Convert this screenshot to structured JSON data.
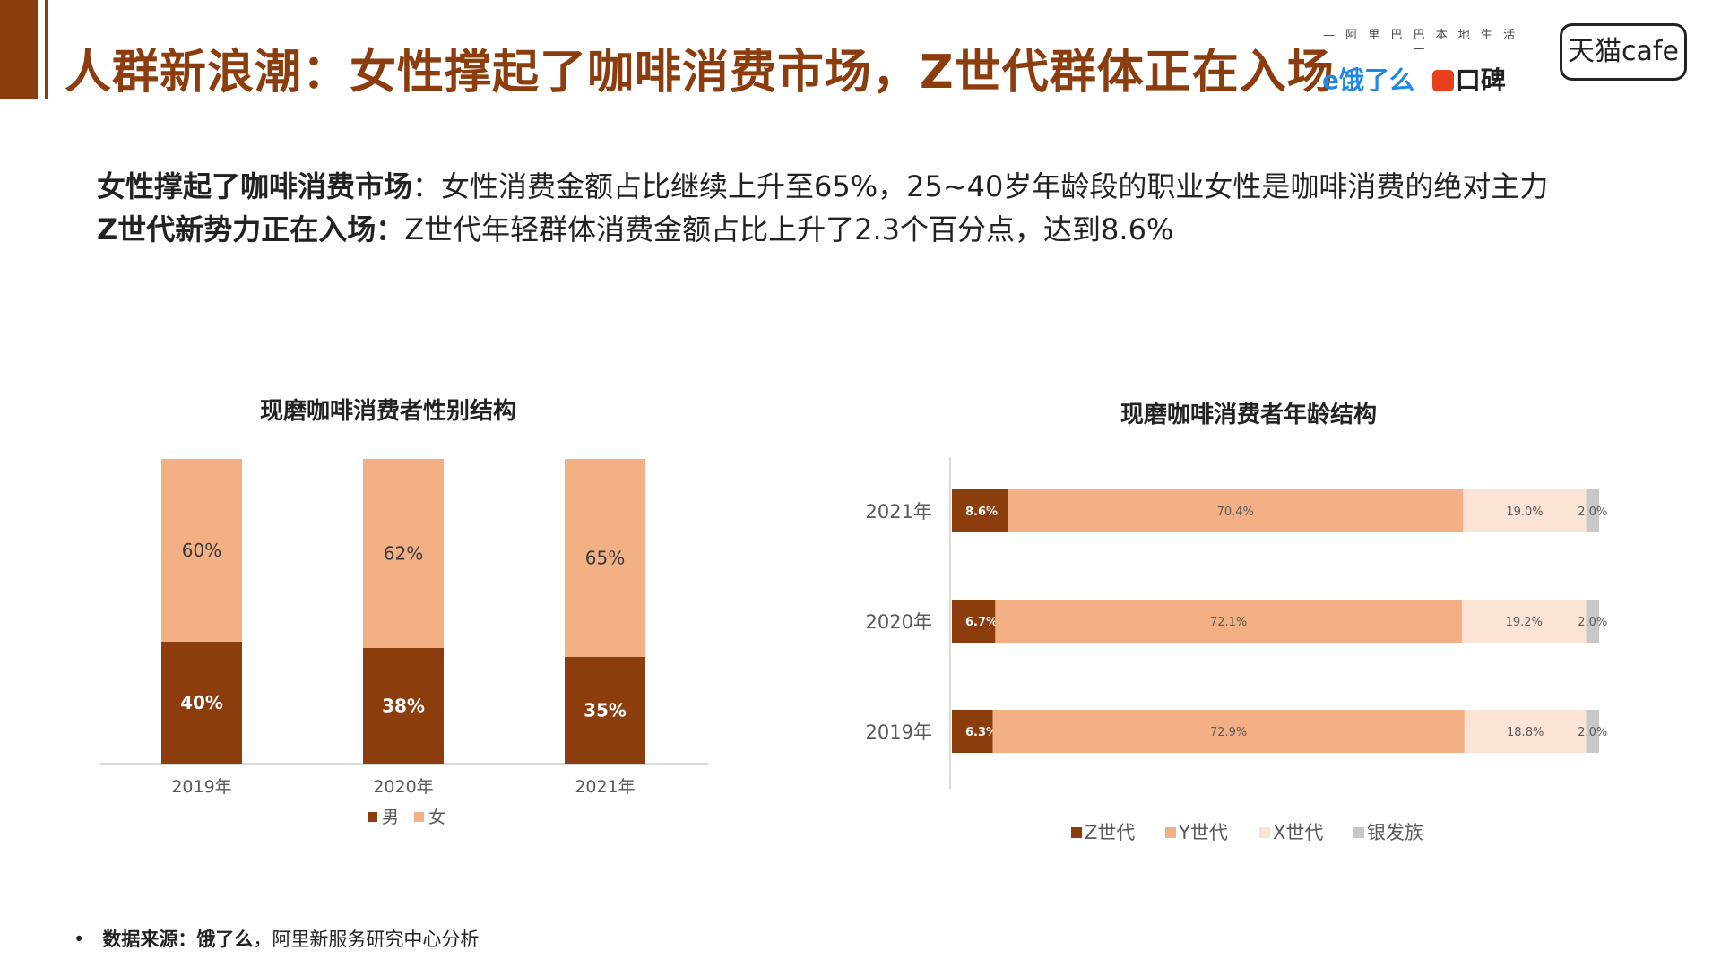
{
  "header": {
    "title": "人群新浪潮：女性撑起了咖啡消费市场，Z世代群体正在入场",
    "logo_tagline": "— 阿 里 巴 巴 本 地 生 活 —",
    "logo_eleme": "e饿了么",
    "logo_koubei": "口碑",
    "logo_tmall": "天猫cafe",
    "accent_color": "#8B3D0E"
  },
  "summary": {
    "line1_lead": "女性撑起了咖啡消费市场",
    "line1_text": "：女性消费金额占比继续上升至65%，25~40岁年龄段的职业女性是咖啡消费的绝对主力",
    "line2_lead": "Z世代新势力正在入场：",
    "line2_text": "Z世代年轻群体消费金额占比上升了2.3个百分点，达到8.6%"
  },
  "chart_data": [
    {
      "type": "bar",
      "stacked": true,
      "orientation": "vertical",
      "title": "现磨咖啡消费者性别结构",
      "categories": [
        "2019年",
        "2020年",
        "2021年"
      ],
      "series": [
        {
          "name": "男",
          "values": [
            40,
            38,
            35
          ],
          "labels": [
            "40%",
            "38%",
            "35%"
          ],
          "color": "#8B3D0E"
        },
        {
          "name": "女",
          "values": [
            60,
            62,
            65
          ],
          "labels": [
            "60%",
            "62%",
            "65%"
          ],
          "color": "#F2B084"
        }
      ],
      "ylim": [
        0,
        100
      ],
      "legend": "bottom",
      "grid": false
    },
    {
      "type": "bar",
      "stacked": true,
      "orientation": "horizontal",
      "title": "现磨咖啡消费者年龄结构",
      "categories": [
        "2021年",
        "2020年",
        "2019年"
      ],
      "series": [
        {
          "name": "Z世代",
          "values": [
            8.6,
            6.7,
            6.3
          ],
          "labels": [
            "8.6%",
            "6.7%",
            "6.3%"
          ],
          "color": "#8B3D0E"
        },
        {
          "name": "Y世代",
          "values": [
            70.4,
            72.1,
            72.9
          ],
          "labels": [
            "70.4%",
            "72.1%",
            "72.9%"
          ],
          "color": "#F2B084"
        },
        {
          "name": "X世代",
          "values": [
            19.0,
            19.2,
            18.8
          ],
          "labels": [
            "19.0%",
            "19.2%",
            "18.8%"
          ],
          "color": "#FBE3D6"
        },
        {
          "name": "银发族",
          "values": [
            2.0,
            2.0,
            2.0
          ],
          "labels": [
            "2.0%",
            "2.0%",
            "2.0%"
          ],
          "color": "#C8C8C8"
        }
      ],
      "xlim": [
        0,
        100
      ],
      "legend": "bottom",
      "grid": false
    }
  ],
  "footer": {
    "bullet": "•",
    "source_lead": "数据来源：饿了么",
    "source_text": "，阿里新服务研究中心分析"
  }
}
